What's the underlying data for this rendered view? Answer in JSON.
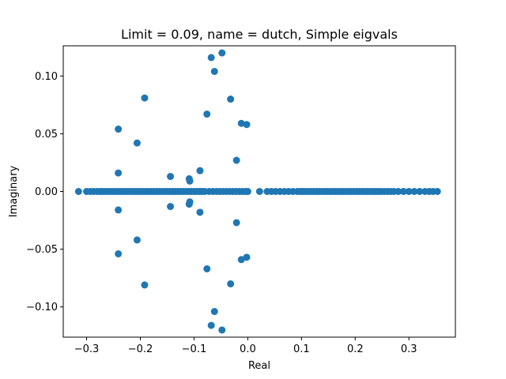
{
  "chart_data": {
    "type": "scatter",
    "title": "Limit = 0.09, name = dutch, Simple eigvals",
    "xlabel": "Real",
    "ylabel": "Imaginary",
    "xlim": [
      -0.3435,
      0.3865
    ],
    "ylim": [
      -0.1262,
      0.1262
    ],
    "xticks": [
      -0.3,
      -0.2,
      -0.1,
      0.0,
      0.1,
      0.2,
      0.3
    ],
    "xtick_labels": [
      "−0.3",
      "−0.2",
      "−0.1",
      "0.0",
      "0.1",
      "0.2",
      "0.3"
    ],
    "yticks": [
      -0.1,
      -0.05,
      0.0,
      0.05,
      0.1
    ],
    "ytick_labels": [
      "−0.10",
      "−0.05",
      "0.00",
      "0.05",
      "0.10"
    ],
    "grid": false,
    "marker_color": "#1f77b4",
    "points": [
      [
        -0.315,
        0
      ],
      [
        -0.3,
        0
      ],
      [
        -0.293,
        0
      ],
      [
        -0.287,
        0
      ],
      [
        -0.281,
        0
      ],
      [
        -0.275,
        0
      ],
      [
        -0.27,
        0
      ],
      [
        -0.265,
        0
      ],
      [
        -0.26,
        0
      ],
      [
        -0.255,
        0
      ],
      [
        -0.25,
        0
      ],
      [
        -0.245,
        0
      ],
      [
        -0.24,
        0
      ],
      [
        -0.235,
        0
      ],
      [
        -0.23,
        0
      ],
      [
        -0.225,
        0
      ],
      [
        -0.22,
        0
      ],
      [
        -0.215,
        0
      ],
      [
        -0.21,
        0
      ],
      [
        -0.205,
        0
      ],
      [
        -0.2,
        0
      ],
      [
        -0.195,
        0
      ],
      [
        -0.19,
        0
      ],
      [
        -0.185,
        0
      ],
      [
        -0.18,
        0
      ],
      [
        -0.175,
        0
      ],
      [
        -0.17,
        0
      ],
      [
        -0.165,
        0
      ],
      [
        -0.16,
        0
      ],
      [
        -0.155,
        0
      ],
      [
        -0.15,
        0
      ],
      [
        -0.145,
        0
      ],
      [
        -0.14,
        0
      ],
      [
        -0.135,
        0
      ],
      [
        -0.13,
        0
      ],
      [
        -0.125,
        0
      ],
      [
        -0.12,
        0
      ],
      [
        -0.115,
        0
      ],
      [
        -0.11,
        0
      ],
      [
        -0.105,
        0
      ],
      [
        -0.1,
        0
      ],
      [
        -0.095,
        0
      ],
      [
        -0.09,
        0
      ],
      [
        -0.085,
        0
      ],
      [
        -0.08,
        0
      ],
      [
        -0.072,
        0
      ],
      [
        -0.065,
        0
      ],
      [
        -0.058,
        0
      ],
      [
        -0.052,
        0
      ],
      [
        -0.046,
        0
      ],
      [
        -0.04,
        0
      ],
      [
        -0.034,
        0
      ],
      [
        -0.028,
        0
      ],
      [
        -0.022,
        0
      ],
      [
        -0.016,
        0
      ],
      [
        -0.01,
        0
      ],
      [
        -0.004,
        0
      ],
      [
        0.0,
        0
      ],
      [
        0.022,
        0
      ],
      [
        0.036,
        0
      ],
      [
        0.044,
        0
      ],
      [
        0.052,
        0
      ],
      [
        0.06,
        0
      ],
      [
        0.068,
        0
      ],
      [
        0.076,
        0
      ],
      [
        0.084,
        0
      ],
      [
        0.092,
        0
      ],
      [
        0.098,
        0
      ],
      [
        0.103,
        0
      ],
      [
        0.108,
        0
      ],
      [
        0.113,
        0
      ],
      [
        0.118,
        0
      ],
      [
        0.123,
        0
      ],
      [
        0.128,
        0
      ],
      [
        0.133,
        0
      ],
      [
        0.138,
        0
      ],
      [
        0.143,
        0
      ],
      [
        0.148,
        0
      ],
      [
        0.153,
        0
      ],
      [
        0.158,
        0
      ],
      [
        0.163,
        0
      ],
      [
        0.168,
        0
      ],
      [
        0.173,
        0
      ],
      [
        0.178,
        0
      ],
      [
        0.183,
        0
      ],
      [
        0.188,
        0
      ],
      [
        0.193,
        0
      ],
      [
        0.198,
        0
      ],
      [
        0.203,
        0
      ],
      [
        0.208,
        0
      ],
      [
        0.213,
        0
      ],
      [
        0.218,
        0
      ],
      [
        0.223,
        0
      ],
      [
        0.228,
        0
      ],
      [
        0.233,
        0
      ],
      [
        0.238,
        0
      ],
      [
        0.243,
        0
      ],
      [
        0.248,
        0
      ],
      [
        0.254,
        0
      ],
      [
        0.26,
        0
      ],
      [
        0.266,
        0
      ],
      [
        0.272,
        0
      ],
      [
        0.28,
        0
      ],
      [
        0.29,
        0
      ],
      [
        0.3,
        0
      ],
      [
        0.31,
        0
      ],
      [
        0.32,
        0
      ],
      [
        0.33,
        0
      ],
      [
        0.338,
        0
      ],
      [
        0.345,
        0
      ],
      [
        0.353,
        0
      ],
      [
        -0.241,
        0.054
      ],
      [
        -0.241,
        -0.054
      ],
      [
        -0.241,
        0.016
      ],
      [
        -0.241,
        -0.016
      ],
      [
        -0.206,
        0.042
      ],
      [
        -0.206,
        -0.042
      ],
      [
        -0.192,
        0.081
      ],
      [
        -0.192,
        -0.081
      ],
      [
        -0.144,
        0.013
      ],
      [
        -0.144,
        -0.013
      ],
      [
        -0.109,
        0.011
      ],
      [
        -0.109,
        -0.011
      ],
      [
        -0.108,
        0.009
      ],
      [
        -0.108,
        -0.009
      ],
      [
        -0.089,
        0.018
      ],
      [
        -0.089,
        -0.018
      ],
      [
        -0.076,
        0.067
      ],
      [
        -0.076,
        -0.067
      ],
      [
        -0.068,
        0.116
      ],
      [
        -0.068,
        -0.116
      ],
      [
        -0.062,
        0.104
      ],
      [
        -0.062,
        -0.104
      ],
      [
        -0.048,
        0.12
      ],
      [
        -0.048,
        -0.12
      ],
      [
        -0.032,
        0.08
      ],
      [
        -0.032,
        -0.08
      ],
      [
        -0.021,
        0.027
      ],
      [
        -0.021,
        -0.027
      ],
      [
        -0.012,
        0.059
      ],
      [
        -0.012,
        -0.059
      ],
      [
        -0.002,
        0.058
      ],
      [
        -0.002,
        -0.057
      ]
    ]
  }
}
